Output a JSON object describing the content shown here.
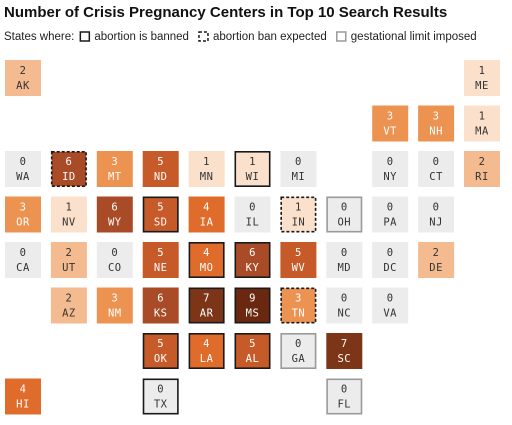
{
  "chart_data": {
    "type": "tile-map",
    "title": "Number of Crisis Pregnancy Centers in Top 10 Search Results",
    "legend_title": "States where:",
    "legend": [
      {
        "label": "abortion is banned",
        "border": "solid",
        "border_color": "#1a1a1a"
      },
      {
        "label": "abortion ban expected",
        "border": "dashed",
        "border_color": "#1a1a1a"
      },
      {
        "label": "gestational limit imposed",
        "border": "solid",
        "border_color": "#9a9a9a"
      }
    ],
    "states": [
      {
        "code": "AK",
        "value": 2,
        "color": "#f5bb90"
      },
      {
        "code": "ME",
        "value": 1,
        "color": "#fbe0cc"
      },
      {
        "code": "VT",
        "value": 3,
        "color": "#ec9352"
      },
      {
        "code": "NH",
        "value": 3,
        "color": "#ec9352"
      },
      {
        "code": "MA",
        "value": 1,
        "color": "#fbe0cc"
      },
      {
        "code": "WA",
        "value": 0,
        "color": "#ececec"
      },
      {
        "code": "ID",
        "value": 6,
        "color": "#a84b26",
        "status": 1
      },
      {
        "code": "MT",
        "value": 3,
        "color": "#ec9352"
      },
      {
        "code": "ND",
        "value": 5,
        "color": "#c65a28"
      },
      {
        "code": "MN",
        "value": 1,
        "color": "#fbe0cc"
      },
      {
        "code": "WI",
        "value": 1,
        "color": "#fbe0cc",
        "status": 0
      },
      {
        "code": "MI",
        "value": 0,
        "color": "#ececec"
      },
      {
        "code": "NY",
        "value": 0,
        "color": "#ececec"
      },
      {
        "code": "CT",
        "value": 0,
        "color": "#ececec"
      },
      {
        "code": "RI",
        "value": 2,
        "color": "#f5bb90"
      },
      {
        "code": "OR",
        "value": 3,
        "color": "#ec9352"
      },
      {
        "code": "NV",
        "value": 1,
        "color": "#fbe0cc"
      },
      {
        "code": "WY",
        "value": 6,
        "color": "#a84b26"
      },
      {
        "code": "SD",
        "value": 5,
        "color": "#c65a28",
        "status": 0
      },
      {
        "code": "IA",
        "value": 4,
        "color": "#e06c2c"
      },
      {
        "code": "IL",
        "value": 0,
        "color": "#ececec"
      },
      {
        "code": "IN",
        "value": 1,
        "color": "#fbe0cc",
        "status": 1
      },
      {
        "code": "OH",
        "value": 0,
        "color": "#ececec",
        "status": 2
      },
      {
        "code": "PA",
        "value": 0,
        "color": "#ececec"
      },
      {
        "code": "NJ",
        "value": 0,
        "color": "#ececec"
      },
      {
        "code": "CA",
        "value": 0,
        "color": "#ececec"
      },
      {
        "code": "UT",
        "value": 2,
        "color": "#f5bb90"
      },
      {
        "code": "CO",
        "value": 0,
        "color": "#ececec"
      },
      {
        "code": "NE",
        "value": 5,
        "color": "#c65a28"
      },
      {
        "code": "MO",
        "value": 4,
        "color": "#e06c2c",
        "status": 0
      },
      {
        "code": "KY",
        "value": 6,
        "color": "#a84b26",
        "status": 0
      },
      {
        "code": "WV",
        "value": 5,
        "color": "#c65a28"
      },
      {
        "code": "MD",
        "value": 0,
        "color": "#ececec"
      },
      {
        "code": "DC",
        "value": 0,
        "color": "#ececec"
      },
      {
        "code": "DE",
        "value": 2,
        "color": "#f5bb90"
      },
      {
        "code": "AZ",
        "value": 2,
        "color": "#f5bb90"
      },
      {
        "code": "NM",
        "value": 3,
        "color": "#ec9352"
      },
      {
        "code": "KS",
        "value": 6,
        "color": "#a84b26"
      },
      {
        "code": "AR",
        "value": 7,
        "color": "#7d3518",
        "status": 0
      },
      {
        "code": "MS",
        "value": 9,
        "color": "#6a2810",
        "status": 0
      },
      {
        "code": "TN",
        "value": 3,
        "color": "#ec9352",
        "status": 1
      },
      {
        "code": "NC",
        "value": 0,
        "color": "#ececec"
      },
      {
        "code": "VA",
        "value": 0,
        "color": "#ececec"
      },
      {
        "code": "OK",
        "value": 5,
        "color": "#c65a28",
        "status": 0
      },
      {
        "code": "LA",
        "value": 4,
        "color": "#e06c2c",
        "status": 0
      },
      {
        "code": "AL",
        "value": 5,
        "color": "#c65a28",
        "status": 0
      },
      {
        "code": "GA",
        "value": 0,
        "color": "#ececec",
        "status": 2
      },
      {
        "code": "SC",
        "value": 7,
        "color": "#7d3518"
      },
      {
        "code": "HI",
        "value": 4,
        "color": "#e06c2c"
      },
      {
        "code": "TX",
        "value": 0,
        "color": "#ececec",
        "status": 0
      },
      {
        "code": "FL",
        "value": 0,
        "color": "#ececec",
        "status": 2
      }
    ]
  }
}
